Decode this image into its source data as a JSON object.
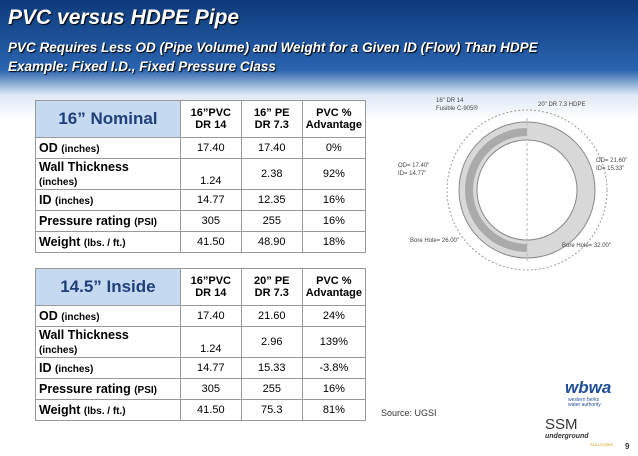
{
  "title": "PVC versus HDPE Pipe",
  "subtitle": [
    "PVC Requires Less OD (Pipe Volume) and Weight for a Given ID (Flow) Than HDPE",
    "Example: Fixed I.D., Fixed Pressure Class"
  ],
  "tables": [
    {
      "heading": "16” Nominal",
      "columns": [
        [
          "16”PVC",
          "DR 14"
        ],
        [
          "16” PE",
          "DR 7.3"
        ],
        [
          "PVC %",
          "Advantage"
        ]
      ],
      "rows": [
        {
          "label": "OD",
          "unit": "(inches)",
          "cells": [
            "17.40",
            "17.40",
            "0%"
          ]
        },
        {
          "label": "Wall Thickness",
          "unit": "(inches)",
          "cells": [
            "1.24",
            "2.38",
            "92%"
          ]
        },
        {
          "label": "ID",
          "unit": "(inches)",
          "cells": [
            "14.77",
            "12.35",
            "16%"
          ]
        },
        {
          "label": "Pressure rating",
          "unit": "(PSI)",
          "cells": [
            "305",
            "255",
            "16%"
          ]
        },
        {
          "label": "Weight",
          "unit": "(lbs. / ft.)",
          "cells": [
            "41.50",
            "48.90",
            "18%"
          ]
        }
      ]
    },
    {
      "heading": "14.5” Inside",
      "columns": [
        [
          "16”PVC",
          "DR 14"
        ],
        [
          "20” PE",
          "DR 7.3"
        ],
        [
          "PVC %",
          "Advantage"
        ]
      ],
      "rows": [
        {
          "label": "OD",
          "unit": "(inches)",
          "cells": [
            "17.40",
            "21.60",
            "24%"
          ]
        },
        {
          "label": "Wall Thickness",
          "unit": "(inches)",
          "cells": [
            "1.24",
            "2.96",
            "139%"
          ]
        },
        {
          "label": "ID",
          "unit": "(inches)",
          "cells": [
            "14.77",
            "15.33",
            "-3.8%"
          ]
        },
        {
          "label": "Pressure rating",
          "unit": "(PSI)",
          "cells": [
            "305",
            "255",
            "16%"
          ]
        },
        {
          "label": "Weight",
          "unit": "(lbs. / ft.)",
          "cells": [
            "41.50",
            "75.3",
            "81%"
          ]
        }
      ]
    }
  ],
  "diagram": {
    "left_label": [
      "16\" DR 14",
      "Fusible C-905®"
    ],
    "right_label": "20\" DR 7.3 HDPE",
    "od_left": "OD= 17.40\"",
    "id_left": "ID= 14.77\"",
    "od_right": "OD= 21.60\"",
    "id_right": "ID= 15.33\"",
    "bore_left": "Bore Hole= 26.00\"",
    "bore_right": "Bore Hole= 32.00\""
  },
  "source": "Source: UGSI",
  "logos": {
    "wbwa": "wbwa",
    "wbwa_name": "western berks water authority",
    "ssm": "SSM",
    "ssm_sub": [
      "underground",
      "SOLUTIONS"
    ]
  },
  "page_number": "9"
}
